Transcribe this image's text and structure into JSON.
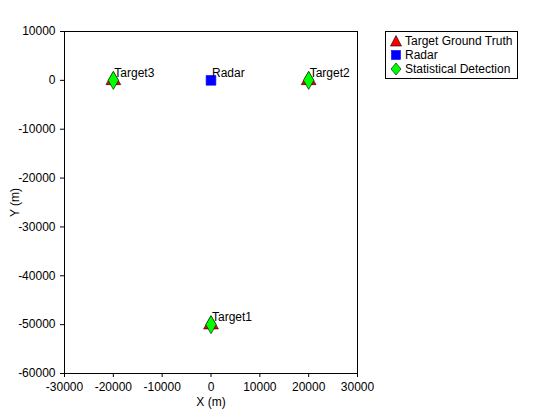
{
  "chart_data": {
    "type": "scatter",
    "xlabel": "X (m)",
    "ylabel": "Y (m)",
    "xlim": [
      -30000,
      30000
    ],
    "ylim": [
      -60000,
      10000
    ],
    "xticks": [
      -30000,
      -20000,
      -10000,
      0,
      10000,
      20000,
      30000
    ],
    "yticks": [
      -60000,
      -50000,
      -40000,
      -30000,
      -20000,
      -10000,
      0,
      10000
    ],
    "grid": false,
    "legend": "northeastoutside",
    "series": [
      {
        "name": "Target Ground Truth",
        "color": "#ff0000",
        "marker": "triangle",
        "x": [
          0,
          20000,
          -20000
        ],
        "y": [
          -50000,
          0,
          0
        ]
      },
      {
        "name": "Radar",
        "color": "#0000ff",
        "marker": "square",
        "x": [
          0
        ],
        "y": [
          0
        ]
      },
      {
        "name": "Statistical Detection",
        "color": "#00ff00",
        "marker": "diamond",
        "x": [
          0,
          20000,
          -20000
        ],
        "y": [
          -50000,
          0,
          0
        ]
      }
    ],
    "annotations": [
      {
        "text": "Target1",
        "x": 0,
        "y": -50000
      },
      {
        "text": "Target2",
        "x": 20000,
        "y": 0
      },
      {
        "text": "Target3",
        "x": -20000,
        "y": 0
      },
      {
        "text": "Radar",
        "x": 0,
        "y": 0
      }
    ]
  }
}
